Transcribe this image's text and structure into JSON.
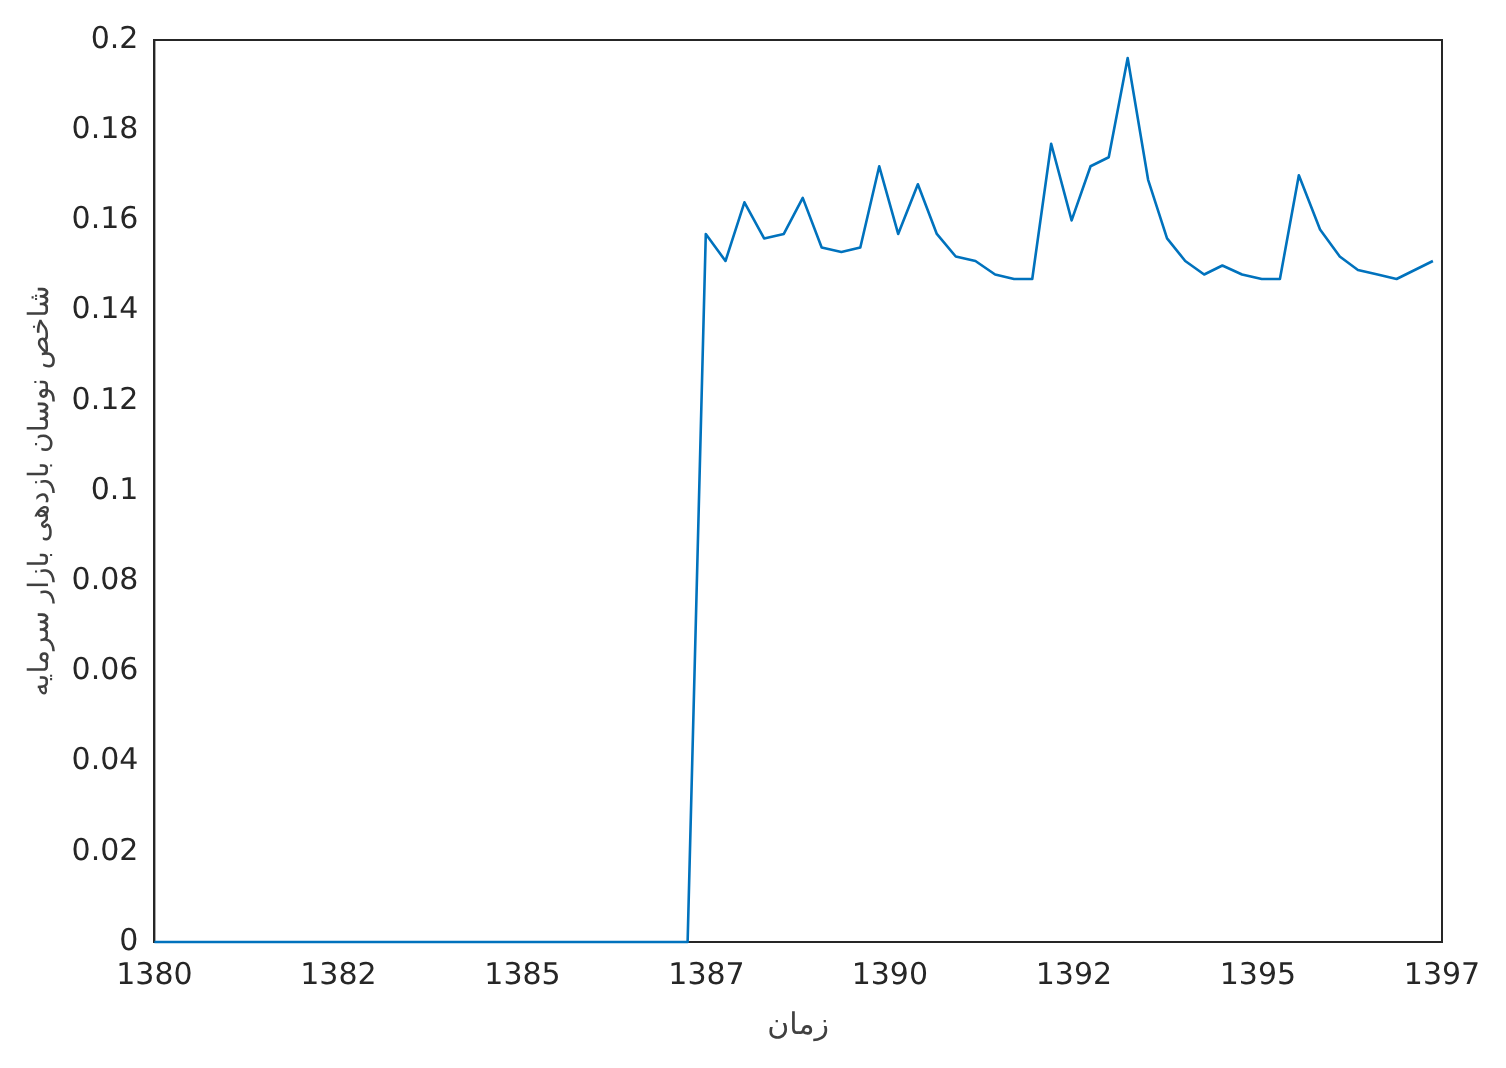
{
  "chart_data": {
    "type": "line",
    "xlabel": "زمان",
    "ylabel": "شاخص نوسان بازدهی بازار سرمایه",
    "x": [
      1380,
      1387.04,
      1387.28,
      1387.54,
      1387.79,
      1388.05,
      1388.31,
      1388.56,
      1388.81,
      1389.07,
      1389.32,
      1389.57,
      1389.82,
      1390.08,
      1390.33,
      1390.58,
      1390.84,
      1391.1,
      1391.35,
      1391.59,
      1391.84,
      1392.11,
      1392.36,
      1392.6,
      1392.85,
      1393.12,
      1393.37,
      1393.61,
      1393.86,
      1394.1,
      1394.36,
      1394.62,
      1394.86,
      1395.11,
      1395.39,
      1395.65,
      1395.89,
      1396.15,
      1396.4,
      1396.88
    ],
    "series": [
      {
        "color": "#0072bd",
        "values": [
          0,
          0,
          0.157,
          0.151,
          0.164,
          0.156,
          0.157,
          0.165,
          0.154,
          0.153,
          0.154,
          0.172,
          0.157,
          0.168,
          0.157,
          0.152,
          0.151,
          0.148,
          0.147,
          0.147,
          0.177,
          0.16,
          0.172,
          0.174,
          0.196,
          0.169,
          0.156,
          0.151,
          0.148,
          0.15,
          0.148,
          0.147,
          0.147,
          0.17,
          0.158,
          0.152,
          0.149,
          0.148,
          0.147,
          0.151
        ]
      }
    ],
    "xlim": [
      1380,
      1397
    ],
    "xticks": [
      1380,
      {
        "value": 1382.43,
        "label": "1382"
      },
      {
        "value": 1384.86,
        "label": "1385"
      },
      {
        "value": 1387.29,
        "label": "1387"
      },
      {
        "value": 1389.71,
        "label": "1390"
      },
      {
        "value": 1392.14,
        "label": "1392"
      },
      {
        "value": 1394.57,
        "label": "1395"
      },
      1397
    ],
    "ylim": [
      0,
      0.2
    ],
    "yticks": [
      0,
      0.02,
      0.04,
      0.06,
      0.08,
      0.1,
      0.12,
      0.14,
      0.16,
      0.18,
      0.2
    ],
    "grid": false,
    "legend": false,
    "marker": "none",
    "line_style": "solid"
  }
}
